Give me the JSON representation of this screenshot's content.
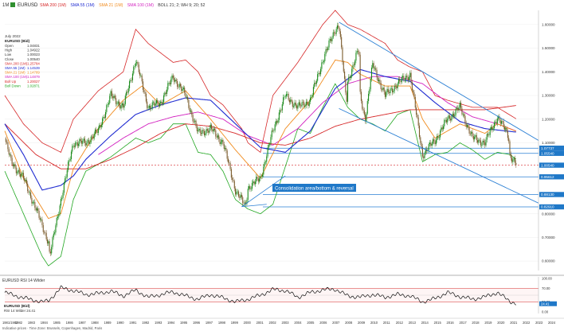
{
  "header": {
    "timeframe": "1M",
    "symbol": "EURUSD",
    "indicators": [
      {
        "label": "SMA 200 (1M)",
        "color": "#d62728"
      },
      {
        "label": "SMA 55 (1M)",
        "color": "#1f2bd1"
      },
      {
        "label": "SMA 21 (1M)",
        "color": "#f08a1c"
      },
      {
        "label": "SMA 100 (1M)",
        "color": "#d21fbf"
      },
      {
        "label": "BOLL 21; 2; WH 9; 20; 52",
        "color": "#333333"
      }
    ]
  },
  "legend": {
    "date": "July 2022",
    "name": "EURUSD (Bid)",
    "rows": [
      {
        "label": "Open",
        "value": "1.04831",
        "color": "#333333"
      },
      {
        "label": "High",
        "value": "1.04922",
        "color": "#333333"
      },
      {
        "label": "Low",
        "value": "1.00023",
        "color": "#333333"
      },
      {
        "label": "Close",
        "value": "1.00540",
        "color": "#333333"
      },
      {
        "label": "SMA 200 (1M)",
        "value": "1.25784",
        "color": "#d62728"
      },
      {
        "label": "SMA 55 (1M)",
        "value": "1.14539",
        "color": "#1f2bd1"
      },
      {
        "label": "SMA 21 (1M)",
        "value": "1.14789",
        "color": "#f08a1c"
      },
      {
        "label": "SMA 100 (1M)",
        "value": "1.14879",
        "color": "#d21fbf"
      },
      {
        "label": "Boll Up",
        "value": "1.20027",
        "color": "#d62728"
      },
      {
        "label": "Boll Down",
        "value": "1.02871",
        "color": "#22a722"
      }
    ]
  },
  "annotation": {
    "text": "Consolidation area/bottom & reversal"
  },
  "rsi": {
    "title": "EURUSD RSI 14 Wilder",
    "label": "EURUSD (Bid)",
    "sublabel": "RSI 14 Wilder 24.41",
    "axis": [
      "100.00",
      "70.00",
      "30.00",
      "0.00"
    ],
    "levels": [
      70,
      30
    ]
  },
  "footer": "Indicative prices · Time Zone: Brussels, Copenhagen, Madrid, Paris",
  "colors": {
    "price_badge": "#1f78c8",
    "trend_channel": "#2a7fd4",
    "current_price_line": "#d62728"
  },
  "chart_data": {
    "type": "line",
    "title": "",
    "xlabel": "",
    "ylabel": "",
    "x_ticks": [
      "1981/1982",
      "1982",
      "1983",
      "1984",
      "1985",
      "1986",
      "1987",
      "1988",
      "1989",
      "1990",
      "1991",
      "1992",
      "1993",
      "1994",
      "1995",
      "1996",
      "1997",
      "1998",
      "1999",
      "2000",
      "2001",
      "2002",
      "2003",
      "2004",
      "2005",
      "2006",
      "2007",
      "2008",
      "2009",
      "2010",
      "2011",
      "2012",
      "2013",
      "2014",
      "2015",
      "2016",
      "2017",
      "2018",
      "2019",
      "2020",
      "2021",
      "2022",
      "2023",
      "2024"
    ],
    "y_ticks": [
      {
        "value": 1.6,
        "label": "1.60000"
      },
      {
        "value": 1.5,
        "label": "1.50000"
      },
      {
        "value": 1.4,
        "label": "1.40000"
      },
      {
        "value": 1.3,
        "label": "1.30000"
      },
      {
        "value": 1.2,
        "label": "1.20000"
      },
      {
        "value": 1.1,
        "label": "1.10000"
      },
      {
        "value": 0.8,
        "label": "0.80000"
      },
      {
        "value": 0.7,
        "label": "0.70000"
      },
      {
        "value": 0.6,
        "label": "0.60000"
      }
    ],
    "ylim": [
      0.56,
      1.66
    ],
    "xlim": [
      1981.5,
      2024.3
    ],
    "price_tags": [
      {
        "value": 1.0773,
        "label": "1.07737"
      },
      {
        "value": 1.0554,
        "label": "1.05540"
      },
      {
        "value": 1.0054,
        "label": "1.00540"
      },
      {
        "value": 0.9561,
        "label": "0.95612"
      },
      {
        "value": 0.8813,
        "label": "0.88130"
      },
      {
        "value": 0.8291,
        "label": "0.82910"
      }
    ],
    "anchors": {
      "price": [
        [
          1981.5,
          1.12
        ],
        [
          1982,
          1.02
        ],
        [
          1983,
          0.95
        ],
        [
          1984,
          0.82
        ],
        [
          1985,
          0.68
        ],
        [
          1985.1,
          0.62
        ],
        [
          1986,
          0.86
        ],
        [
          1987,
          1.1
        ],
        [
          1988,
          1.1
        ],
        [
          1989,
          1.15
        ],
        [
          1990,
          1.3
        ],
        [
          1991,
          1.25
        ],
        [
          1992,
          1.45
        ],
        [
          1993,
          1.25
        ],
        [
          1994,
          1.27
        ],
        [
          1995,
          1.38
        ],
        [
          1996,
          1.3
        ],
        [
          1997,
          1.14
        ],
        [
          1998,
          1.16
        ],
        [
          1999,
          1.1
        ],
        [
          2000,
          0.9
        ],
        [
          2000.8,
          0.83
        ],
        [
          2001,
          0.91
        ],
        [
          2002,
          0.95
        ],
        [
          2003,
          1.15
        ],
        [
          2004,
          1.3
        ],
        [
          2005,
          1.25
        ],
        [
          2006,
          1.28
        ],
        [
          2007,
          1.45
        ],
        [
          2008,
          1.58
        ],
        [
          2008.3,
          1.6
        ],
        [
          2008.9,
          1.27
        ],
        [
          2009,
          1.36
        ],
        [
          2009.9,
          1.5
        ],
        [
          2010,
          1.3
        ],
        [
          2010.4,
          1.2
        ],
        [
          2011,
          1.43
        ],
        [
          2012,
          1.3
        ],
        [
          2013,
          1.35
        ],
        [
          2014,
          1.39
        ],
        [
          2015,
          1.05
        ],
        [
          2016,
          1.11
        ],
        [
          2017,
          1.2
        ],
        [
          2018,
          1.25
        ],
        [
          2019,
          1.12
        ],
        [
          2020,
          1.1
        ],
        [
          2021,
          1.21
        ],
        [
          2021.9,
          1.13
        ],
        [
          2022,
          1.05
        ],
        [
          2022.55,
          1.005
        ]
      ],
      "sma200": [
        [
          1981.5,
          1.18
        ],
        [
          1984,
          1.05
        ],
        [
          1986,
          0.99
        ],
        [
          1988,
          0.99
        ],
        [
          1990,
          1.03
        ],
        [
          1992,
          1.08
        ],
        [
          1994,
          1.14
        ],
        [
          1996,
          1.18
        ],
        [
          1998,
          1.17
        ],
        [
          2000,
          1.14
        ],
        [
          2002,
          1.1
        ],
        [
          2004,
          1.09
        ],
        [
          2006,
          1.12
        ],
        [
          2008,
          1.17
        ],
        [
          2010,
          1.2
        ],
        [
          2012,
          1.22
        ],
        [
          2014,
          1.24
        ],
        [
          2016,
          1.24
        ],
        [
          2018,
          1.24
        ],
        [
          2020,
          1.24
        ],
        [
          2022.55,
          1.258
        ]
      ],
      "sma55": [
        [
          1981.5,
          1.18
        ],
        [
          1983,
          1.05
        ],
        [
          1984.5,
          0.9
        ],
        [
          1986,
          0.92
        ],
        [
          1987,
          0.96
        ],
        [
          1988,
          1.03
        ],
        [
          1990,
          1.13
        ],
        [
          1992,
          1.22
        ],
        [
          1994,
          1.26
        ],
        [
          1996,
          1.29
        ],
        [
          1998,
          1.28
        ],
        [
          2000,
          1.18
        ],
        [
          2002,
          1.08
        ],
        [
          2004,
          1.06
        ],
        [
          2006,
          1.15
        ],
        [
          2008,
          1.33
        ],
        [
          2010,
          1.41
        ],
        [
          2012,
          1.38
        ],
        [
          2014,
          1.36
        ],
        [
          2016,
          1.27
        ],
        [
          2018,
          1.19
        ],
        [
          2020,
          1.16
        ],
        [
          2022.55,
          1.145
        ]
      ],
      "sma21": [
        [
          1981.5,
          1.15
        ],
        [
          1983,
          0.95
        ],
        [
          1985,
          0.78
        ],
        [
          1986,
          0.8
        ],
        [
          1987,
          0.99
        ],
        [
          1989,
          1.16
        ],
        [
          1991,
          1.28
        ],
        [
          1992.5,
          1.34
        ],
        [
          1994,
          1.26
        ],
        [
          1996,
          1.32
        ],
        [
          1998,
          1.2
        ],
        [
          2000,
          1.07
        ],
        [
          2002,
          0.95
        ],
        [
          2004,
          1.16
        ],
        [
          2006,
          1.28
        ],
        [
          2008,
          1.45
        ],
        [
          2009,
          1.44
        ],
        [
          2010,
          1.39
        ],
        [
          2012,
          1.34
        ],
        [
          2014,
          1.34
        ],
        [
          2015,
          1.2
        ],
        [
          2016,
          1.12
        ],
        [
          2018,
          1.18
        ],
        [
          2020,
          1.14
        ],
        [
          2021,
          1.18
        ],
        [
          2022.55,
          1.148
        ]
      ],
      "sma100": [
        [
          1989,
          1.05
        ],
        [
          1991,
          1.12
        ],
        [
          1993,
          1.18
        ],
        [
          1995,
          1.21
        ],
        [
          1997,
          1.23
        ],
        [
          1999,
          1.2
        ],
        [
          2001,
          1.13
        ],
        [
          2003,
          1.09
        ],
        [
          2005,
          1.16
        ],
        [
          2007,
          1.27
        ],
        [
          2009,
          1.35
        ],
        [
          2011,
          1.38
        ],
        [
          2013,
          1.38
        ],
        [
          2015,
          1.35
        ],
        [
          2017,
          1.27
        ],
        [
          2019,
          1.21
        ],
        [
          2021,
          1.18
        ],
        [
          2022.55,
          1.149
        ]
      ],
      "boll_up": [
        [
          1981.5,
          1.3
        ],
        [
          1983,
          1.18
        ],
        [
          1984.5,
          1.1
        ],
        [
          1986,
          1.06
        ],
        [
          1987,
          1.2
        ],
        [
          1989,
          1.32
        ],
        [
          1991,
          1.4
        ],
        [
          1992,
          1.58
        ],
        [
          1993,
          1.52
        ],
        [
          1995,
          1.44
        ],
        [
          1996,
          1.45
        ],
        [
          1997,
          1.4
        ],
        [
          1998,
          1.3
        ],
        [
          1999,
          1.26
        ],
        [
          2000.5,
          1.16
        ],
        [
          2001,
          1.1
        ],
        [
          2002,
          1.06
        ],
        [
          2003,
          1.3
        ],
        [
          2005,
          1.44
        ],
        [
          2007,
          1.6
        ],
        [
          2008,
          1.66
        ],
        [
          2009,
          1.6
        ],
        [
          2010,
          1.58
        ],
        [
          2011,
          1.55
        ],
        [
          2012,
          1.52
        ],
        [
          2013,
          1.45
        ],
        [
          2014,
          1.42
        ],
        [
          2015,
          1.4
        ],
        [
          2016,
          1.3
        ],
        [
          2017,
          1.28
        ],
        [
          2019,
          1.25
        ],
        [
          2021,
          1.25
        ],
        [
          2022.55,
          1.2
        ]
      ],
      "boll_down": [
        [
          1981.5,
          0.98
        ],
        [
          1983,
          0.8
        ],
        [
          1984.5,
          0.62
        ],
        [
          1985,
          0.58
        ],
        [
          1986,
          0.62
        ],
        [
          1987,
          0.86
        ],
        [
          1988,
          0.98
        ],
        [
          1990,
          1.04
        ],
        [
          1991,
          1.08
        ],
        [
          1992,
          1.12
        ],
        [
          1993,
          1.1
        ],
        [
          1994,
          1.12
        ],
        [
          1995,
          1.18
        ],
        [
          1996,
          1.18
        ],
        [
          1997,
          1.06
        ],
        [
          1998,
          1.05
        ],
        [
          1999,
          0.98
        ],
        [
          2000,
          0.86
        ],
        [
          2001,
          0.82
        ],
        [
          2002,
          0.8
        ],
        [
          2003,
          0.84
        ],
        [
          2004,
          1.0
        ],
        [
          2005,
          1.16
        ],
        [
          2006,
          1.14
        ],
        [
          2007,
          1.25
        ],
        [
          2008,
          1.35
        ],
        [
          2009,
          1.25
        ],
        [
          2010,
          1.2
        ],
        [
          2011,
          1.18
        ],
        [
          2012,
          1.15
        ],
        [
          2013,
          1.22
        ],
        [
          2014,
          1.24
        ],
        [
          2015,
          1.02
        ],
        [
          2016,
          1.05
        ],
        [
          2017,
          1.06
        ],
        [
          2018,
          1.1
        ],
        [
          2019,
          1.07
        ],
        [
          2020,
          1.03
        ],
        [
          2021,
          1.06
        ],
        [
          2022,
          1.05
        ],
        [
          2022.55,
          1.029
        ]
      ],
      "rsi": [
        [
          1981.5,
          58
        ],
        [
          1983,
          42
        ],
        [
          1984.5,
          30
        ],
        [
          1985,
          33
        ],
        [
          1986,
          72
        ],
        [
          1987,
          64
        ],
        [
          1988,
          52
        ],
        [
          1989,
          55
        ],
        [
          1990,
          62
        ],
        [
          1991,
          48
        ],
        [
          1992,
          65
        ],
        [
          1993,
          44
        ],
        [
          1994,
          52
        ],
        [
          1995,
          60
        ],
        [
          1996,
          48
        ],
        [
          1997,
          38
        ],
        [
          1998,
          52
        ],
        [
          1999,
          42
        ],
        [
          2000,
          30
        ],
        [
          2001,
          38
        ],
        [
          2002,
          50
        ],
        [
          2003,
          67
        ],
        [
          2004,
          64
        ],
        [
          2005,
          44
        ],
        [
          2006,
          58
        ],
        [
          2007,
          66
        ],
        [
          2008,
          68
        ],
        [
          2009,
          48
        ],
        [
          2010,
          44
        ],
        [
          2011,
          52
        ],
        [
          2012,
          44
        ],
        [
          2013,
          52
        ],
        [
          2014,
          48
        ],
        [
          2015,
          30
        ],
        [
          2016,
          40
        ],
        [
          2017,
          58
        ],
        [
          2018,
          46
        ],
        [
          2019,
          38
        ],
        [
          2020,
          45
        ],
        [
          2021,
          58
        ],
        [
          2022,
          32
        ],
        [
          2022.55,
          24.41
        ]
      ]
    },
    "trend_channel": [
      {
        "from": [
          2008.3,
          1.61
        ],
        "to": [
          2024.3,
          1.11
        ]
      },
      {
        "from": [
          2008.3,
          1.245
        ],
        "to": [
          2024.3,
          0.845
        ]
      }
    ],
    "support_lines": [
      {
        "from": [
          2000.5,
          0.83
        ],
        "to": [
          2004.0,
          0.96
        ]
      },
      {
        "from": [
          2000.5,
          0.83
        ],
        "to": [
          2002.5,
          0.84
        ]
      }
    ]
  }
}
